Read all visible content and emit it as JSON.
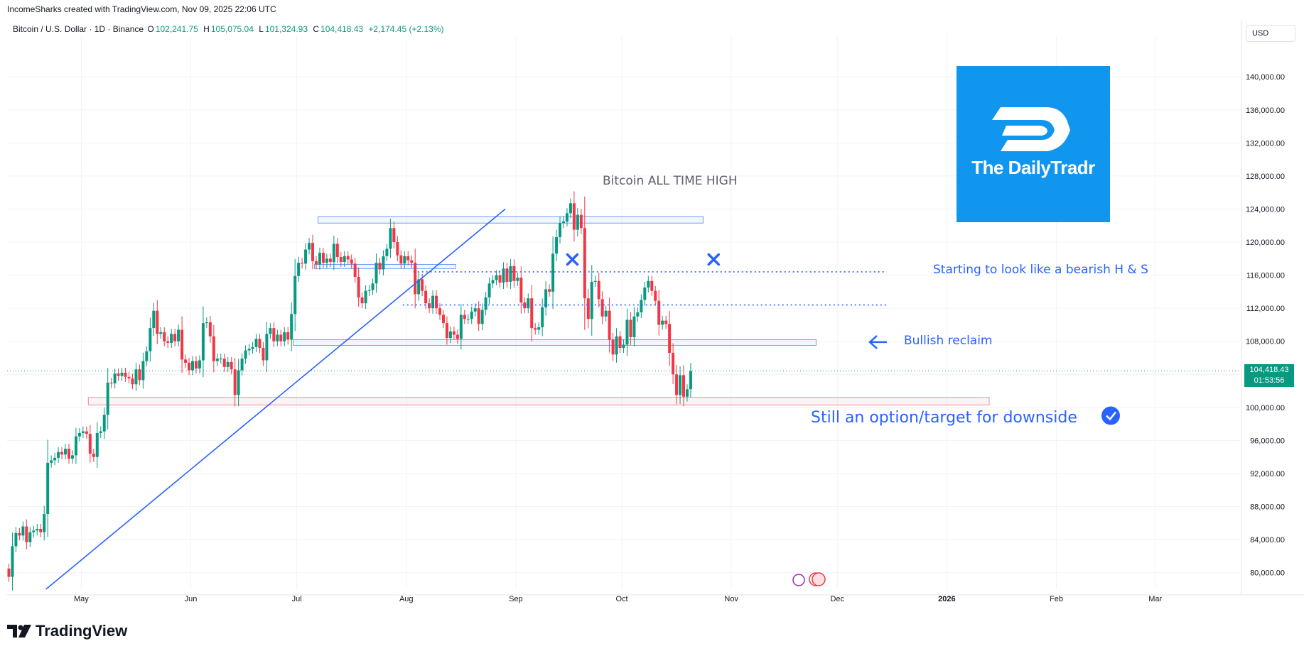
{
  "header": {
    "attribution": "IncomeSharks created with TradingView.com, Nov 09, 2025 22:06 UTC",
    "symbol": "Bitcoin / U.S. Dollar · 1D · Binance",
    "open_label": "O",
    "open": "102,241.75",
    "high_label": "H",
    "high": "105,075.04",
    "low_label": "L",
    "low": "101,324.93",
    "close_label": "C",
    "close": "104,418.43",
    "change": "+2,174.45 (+2.13%)"
  },
  "currency_button": "USD",
  "last_price_tag": {
    "price": "104,418.43",
    "countdown": "01:53:56"
  },
  "brand": {
    "name": "TradingView"
  },
  "logo_card": {
    "text": "The DailyTradr"
  },
  "colors": {
    "up": "#089981",
    "down": "#f23645",
    "annotation": "#2962ff",
    "last_price": "#089981"
  },
  "chart_data": {
    "type": "candlestick",
    "x_tick_labels": [
      "May",
      "Jun",
      "Jul",
      "Aug",
      "Sep",
      "Oct",
      "Nov",
      "Dec",
      "2026",
      "Feb",
      "Mar"
    ],
    "y_tick_labels": [
      "80,000.00",
      "84,000.00",
      "88,000.00",
      "92,000.00",
      "96,000.00",
      "100,000.00",
      "104,000.00",
      "108,000.00",
      "112,000.00",
      "116,000.00",
      "120,000.00",
      "124,000.00",
      "128,000.00",
      "132,000.00",
      "136,000.00",
      "140,000.00"
    ],
    "y_ticks": [
      80000,
      84000,
      88000,
      92000,
      96000,
      100000,
      104000,
      108000,
      112000,
      116000,
      120000,
      124000,
      128000,
      132000,
      136000,
      140000
    ],
    "ylim": [
      78000,
      145000
    ],
    "xlim": [
      "2025-04-10",
      "2026-03-25"
    ],
    "closes_daily_from_2025-04-10": [
      79500,
      83200,
      84800,
      84500,
      85600,
      83700,
      84900,
      85100,
      85300,
      84900,
      87100,
      93300,
      93600,
      93900,
      94600,
      94300,
      95000,
      93800,
      94200,
      96500,
      96900,
      97100,
      96800,
      94400,
      94000,
      96900,
      97100,
      99100,
      103000,
      102900,
      104100,
      103800,
      104200,
      103700,
      103500,
      102800,
      104600,
      103300,
      105600,
      106800,
      109600,
      111700,
      108900,
      109100,
      108000,
      107800,
      108900,
      108000,
      109400,
      105800,
      105400,
      104500,
      105600,
      104700,
      105700,
      110200,
      110300,
      108600,
      105600,
      105900,
      105900,
      104900,
      105500,
      104600,
      101500,
      104500,
      105900,
      106900,
      107100,
      107300,
      108300,
      107200,
      105700,
      108900,
      109600,
      108000,
      108800,
      108000,
      109100,
      108200,
      111300,
      115900,
      117500,
      117400,
      119100,
      119900,
      117700,
      117300,
      118700,
      117500,
      118000,
      117600,
      119800,
      118200,
      117600,
      118300,
      117900,
      117400,
      115800,
      113300,
      112600,
      114100,
      114200,
      115000,
      117500,
      116700,
      118300,
      119200,
      121700,
      120000,
      118400,
      117400,
      118300,
      117800,
      117500,
      113700,
      115500,
      114100,
      112600,
      112000,
      113500,
      112000,
      111200,
      110200,
      108400,
      109200,
      108800,
      108300,
      111200,
      110700,
      110700,
      111600,
      112000,
      110100,
      111800,
      113300,
      115000,
      115400,
      116000,
      115100,
      116800,
      115200,
      117100,
      115300,
      115700,
      112700,
      112000,
      113200,
      109600,
      109400,
      109700,
      112100,
      114300,
      114000,
      118600,
      120600,
      122300,
      122500,
      123500,
      124700,
      121500,
      123300,
      121700,
      113200,
      110700,
      115200,
      115300,
      113100,
      111000,
      111700,
      108200,
      106400,
      108600,
      107200,
      107600,
      110600,
      108500,
      111000,
      111500,
      113000,
      114500,
      115300,
      114100,
      112900,
      110000,
      110500,
      110100,
      106600,
      104000,
      101500,
      103900,
      101300,
      102200,
      104400
    ]
  },
  "annotations": {
    "ath": "Bitcoin ALL TIME HIGH",
    "hs": "Starting to look like a bearish H & S",
    "reclaim": "Bullish reclaim",
    "target": "Still an option/target for downside"
  }
}
